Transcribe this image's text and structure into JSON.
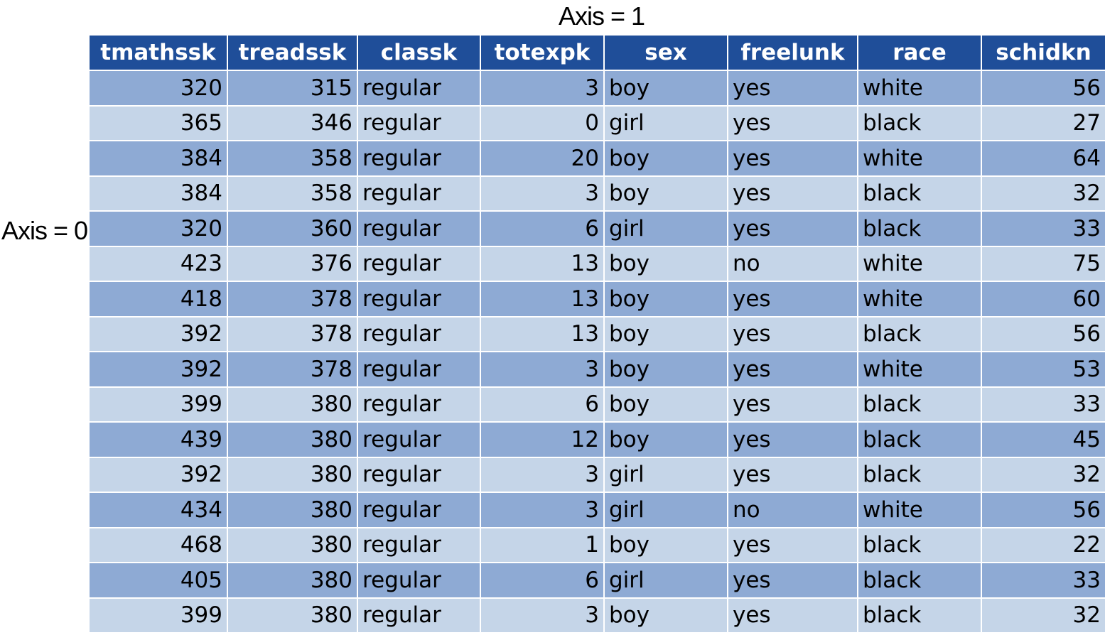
{
  "axis_labels": {
    "columns": "Axis = 1",
    "rows": "Axis = 0"
  },
  "table": {
    "headers": [
      "tmathssk",
      "treadssk",
      "classk",
      "totexpk",
      "sex",
      "freelunk",
      "race",
      "schidkn"
    ],
    "rows": [
      [
        "320",
        "315",
        "regular",
        "3",
        "boy",
        "yes",
        "white",
        "56"
      ],
      [
        "365",
        "346",
        "regular",
        "0",
        "girl",
        "yes",
        "black",
        "27"
      ],
      [
        "384",
        "358",
        "regular",
        "20",
        "boy",
        "yes",
        "white",
        "64"
      ],
      [
        "384",
        "358",
        "regular",
        "3",
        "boy",
        "yes",
        "black",
        "32"
      ],
      [
        "320",
        "360",
        "regular",
        "6",
        "girl",
        "yes",
        "black",
        "33"
      ],
      [
        "423",
        "376",
        "regular",
        "13",
        "boy",
        "no",
        "white",
        "75"
      ],
      [
        "418",
        "378",
        "regular",
        "13",
        "boy",
        "yes",
        "white",
        "60"
      ],
      [
        "392",
        "378",
        "regular",
        "13",
        "boy",
        "yes",
        "black",
        "56"
      ],
      [
        "392",
        "378",
        "regular",
        "3",
        "boy",
        "yes",
        "white",
        "53"
      ],
      [
        "399",
        "380",
        "regular",
        "6",
        "boy",
        "yes",
        "black",
        "33"
      ],
      [
        "439",
        "380",
        "regular",
        "12",
        "boy",
        "yes",
        "black",
        "45"
      ],
      [
        "392",
        "380",
        "regular",
        "3",
        "girl",
        "yes",
        "black",
        "32"
      ],
      [
        "434",
        "380",
        "regular",
        "3",
        "girl",
        "no",
        "white",
        "56"
      ],
      [
        "468",
        "380",
        "regular",
        "1",
        "boy",
        "yes",
        "black",
        "22"
      ],
      [
        "405",
        "380",
        "regular",
        "6",
        "girl",
        "yes",
        "black",
        "33"
      ],
      [
        "399",
        "380",
        "regular",
        "3",
        "boy",
        "yes",
        "black",
        "32"
      ]
    ]
  },
  "colors": {
    "header_bg": "#1f4e99",
    "row_dark": "#8eaad4",
    "row_light": "#c5d5e8"
  }
}
